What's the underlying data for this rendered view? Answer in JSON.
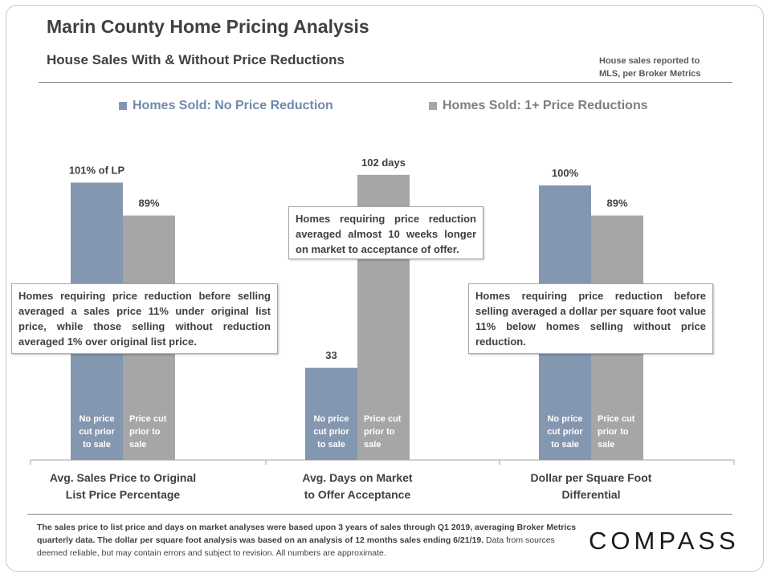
{
  "header": {
    "title": "Marin County Home Pricing Analysis",
    "subtitle": "House Sales With & Without Price Reductions",
    "source_line1": "House sales reported to",
    "source_line2": "MLS, per Broker Metrics"
  },
  "colors": {
    "series1": "#8497b0",
    "series2": "#a6a6a6",
    "text": "#404040",
    "bar_label_text": "#ffffff"
  },
  "chart_data": {
    "type": "bar",
    "title": "House Sales With & Without Price Reductions",
    "categories": [
      [
        "Avg. Sales Price to Original",
        "List Price Percentage"
      ],
      [
        "Avg. Days on Market",
        "to Offer Acceptance"
      ],
      [
        "Dollar per Square Foot",
        "Differential"
      ]
    ],
    "series": [
      {
        "name": "Homes Sold: No Price Reduction",
        "values": [
          101,
          33,
          100
        ],
        "data_labels": [
          "101% of LP",
          "33",
          "100%"
        ],
        "bar_text": [
          "No price",
          "cut prior",
          "to sale"
        ]
      },
      {
        "name": "Homes Sold: 1+ Price Reductions",
        "values": [
          89,
          102,
          89
        ],
        "data_labels": [
          "89%",
          "102 days",
          "89%"
        ],
        "bar_text": [
          "Price cut",
          "prior to",
          "sale"
        ]
      }
    ],
    "group_units": [
      "percent of list price",
      "days",
      "percent"
    ],
    "group_max": [
      114,
      112,
      114
    ],
    "legend_position": "top",
    "grid": false
  },
  "callouts": [
    "Homes requiring price reduction before selling averaged a sales price 11% under original list price, while those selling without reduction averaged 1% over original list price.",
    "Homes requiring price reduction averaged almost 10 weeks longer on market to acceptance of offer.",
    "Homes requiring price reduction before selling averaged a dollar per square foot value 11% below homes selling without price reduction."
  ],
  "footnote": {
    "bold_text": "The sales price to list price and days on market analyses were based upon 3 years of sales through Q1 2019, averaging Broker Metrics quarterly data. The dollar per square foot analysis was based on an analysis of 12 months sales ending 6/21/19.",
    "normal_text": "  Data from sources deemed  reliable, but may contain errors and subject to revision. All numbers are approximate."
  },
  "logo": "COMPASS"
}
